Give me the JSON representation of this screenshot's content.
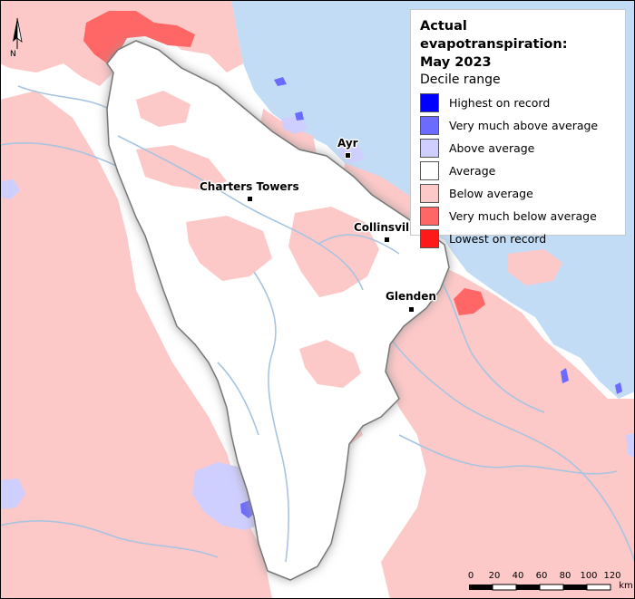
{
  "legend": {
    "title_line1": "Actual evapotranspiration:",
    "title_line2": "May 2023",
    "subtitle": "Decile range",
    "items": [
      {
        "label": "Highest on record",
        "color": "#0000ff"
      },
      {
        "label": "Very much above average",
        "color": "#6b6bff"
      },
      {
        "label": "Above average",
        "color": "#cfcfff"
      },
      {
        "label": "Average",
        "color": "#ffffff"
      },
      {
        "label": "Below average",
        "color": "#fdc8c8"
      },
      {
        "label": "Very much below average",
        "color": "#ff6666"
      },
      {
        "label": "Lowest on record",
        "color": "#ff1a1a"
      }
    ]
  },
  "towns": [
    {
      "name": "Ayr"
    },
    {
      "name": "Charters Towers"
    },
    {
      "name": "Collinsvil"
    },
    {
      "name": "Glenden"
    }
  ],
  "north_arrow": {
    "label": "N"
  },
  "scale": {
    "ticks": [
      "0",
      "20",
      "40",
      "60",
      "80",
      "100",
      "120"
    ],
    "unit": "km"
  },
  "colors": {
    "sea": "#c2dcf5",
    "river": "#a8c4e0",
    "basin_outline": "#777777"
  }
}
